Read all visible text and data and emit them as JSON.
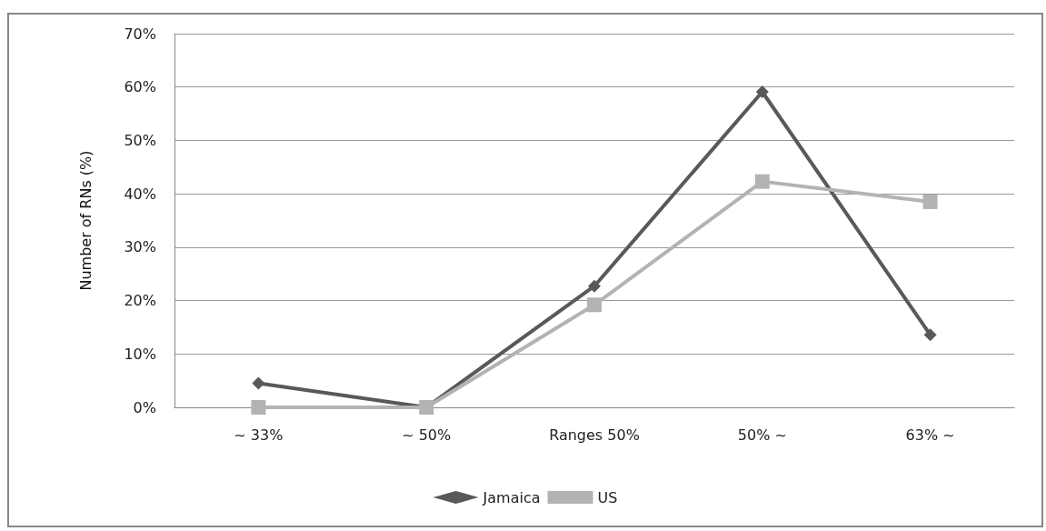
{
  "chart_data": {
    "type": "line",
    "ylabel": "Number of RNs (%)",
    "categories": [
      "~ 33%",
      "~ 50%",
      "Ranges 50%",
      "50% ~",
      "63% ~"
    ],
    "series": [
      {
        "name": "Jamaica",
        "color": "#595959",
        "marker": "diamond",
        "values": [
          4.5,
          0,
          22.7,
          59.1,
          13.6
        ]
      },
      {
        "name": "US",
        "color": "#b3b3b3",
        "marker": "square",
        "values": [
          0,
          0,
          19.2,
          42.3,
          38.5
        ]
      }
    ],
    "ylim": [
      0,
      70
    ],
    "yticks": [
      {
        "value": 0,
        "label": "0%"
      },
      {
        "value": 10,
        "label": "10%"
      },
      {
        "value": 20,
        "label": "20%"
      },
      {
        "value": 30,
        "label": "30%"
      },
      {
        "value": 40,
        "label": "40%"
      },
      {
        "value": 50,
        "label": "50%"
      },
      {
        "value": 60,
        "label": "60%"
      },
      {
        "value": 70,
        "label": "70%"
      }
    ],
    "grid": "y",
    "legend": "bottom",
    "line_style": "solid"
  }
}
